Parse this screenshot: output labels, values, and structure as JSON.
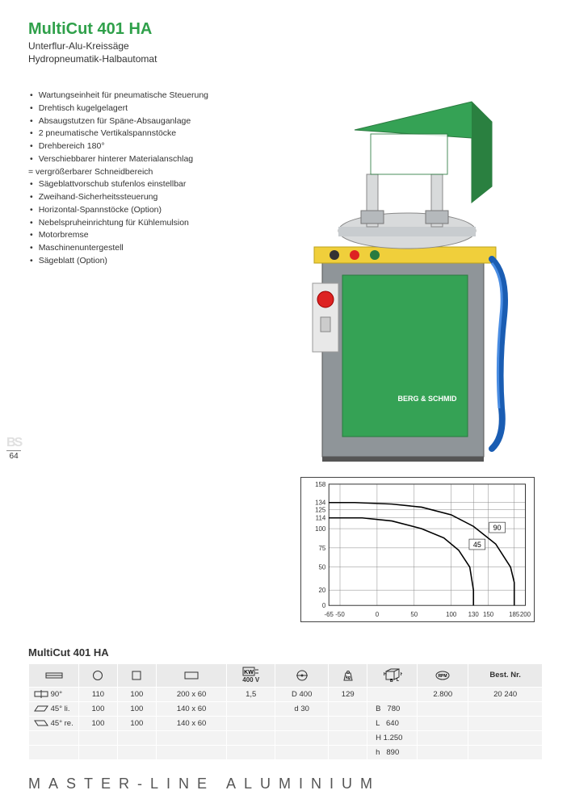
{
  "title": "MultiCut 401 HA",
  "subtitle1": "Unterflur-Alu-Kreissäge",
  "subtitle2": "Hydropneumatik-Halbautomat",
  "features": [
    "Wartungseinheit für pneumatische Steuerung",
    "Drehtisch kugelgelagert",
    "Absaugstutzen für Späne-Absauganlage",
    "2 pneumatische Vertikalspannstöcke",
    "Drehbereich 180°",
    "Verschiebbarer hinterer Materialanschlag",
    "= vergrößerbarer Schneidbereich",
    "Sägeblattvorschub stufenlos einstellbar",
    "Zweihand-Sicherheitssteuerung",
    "Horizontal-Spannstöcke (Option)",
    "Nebelspruheinrichtung für Kühlemulsion",
    "Motorbremse",
    "Maschinenuntergestell",
    "Sägeblatt (Option)"
  ],
  "feature_indent_indices": [
    6
  ],
  "page_number": "64",
  "machine_colors": {
    "body_green": "#35a255",
    "body_grey": "#8f9599",
    "panel_yellow": "#f0cf3b",
    "button_red": "#d22",
    "hose_blue": "#1a5db3",
    "steel": "#d8dadb",
    "dark": "#3a3f42"
  },
  "chart": {
    "xlim": [
      -65,
      200
    ],
    "ylim": [
      0,
      158
    ],
    "xticks": [
      -65,
      -50,
      0,
      50,
      100,
      130,
      150,
      185,
      200
    ],
    "yticks": [
      0,
      20,
      50,
      75,
      100,
      114,
      125,
      134,
      158
    ],
    "xlabels": [
      "-65",
      "-50",
      "0",
      "50",
      "100",
      "130",
      "150",
      "185",
      "200"
    ],
    "ylabels": [
      "0",
      "20",
      "50",
      "75",
      "100",
      "114",
      "125",
      "134",
      "158"
    ],
    "grid_color": "#888888",
    "line_color": "#000000",
    "curves": {
      "c90": {
        "label": "90",
        "label_x": 162,
        "label_y": 100,
        "points": [
          [
            -65,
            134
          ],
          [
            -30,
            134
          ],
          [
            20,
            132
          ],
          [
            60,
            128
          ],
          [
            100,
            118
          ],
          [
            130,
            103
          ],
          [
            160,
            80
          ],
          [
            180,
            50
          ],
          [
            185,
            30
          ],
          [
            185,
            0
          ]
        ]
      },
      "c45": {
        "label": "45",
        "label_x": 135,
        "label_y": 78,
        "points": [
          [
            -65,
            114
          ],
          [
            -20,
            114
          ],
          [
            20,
            110
          ],
          [
            60,
            100
          ],
          [
            90,
            88
          ],
          [
            110,
            72
          ],
          [
            125,
            50
          ],
          [
            130,
            20
          ],
          [
            130,
            0
          ]
        ]
      }
    }
  },
  "spec_title": "MultiCut 401 HA",
  "spec_headers": {
    "kw_sub": "400 V",
    "best": "Best. Nr."
  },
  "spec_rows": [
    {
      "angle": "90°",
      "c1": "110",
      "c2": "100",
      "c3": "200 x 60",
      "kw": "1,5",
      "d": "D 400",
      "kg": "129",
      "dim": "",
      "rpm": "2.800",
      "best": "20 240"
    },
    {
      "angle": "45° li.",
      "c1": "100",
      "c2": "100",
      "c3": "140 x 60",
      "kw": "",
      "d": "d 30",
      "kg": "",
      "dim": "B   780",
      "rpm": "",
      "best": ""
    },
    {
      "angle": "45° re.",
      "c1": "100",
      "c2": "100",
      "c3": "140 x 60",
      "kw": "",
      "d": "",
      "kg": "",
      "dim": "L   640",
      "rpm": "",
      "best": ""
    }
  ],
  "spec_dims_extra": [
    "H 1.250",
    "h   890"
  ],
  "footer": "MASTER-LINE  ALUMINIUM"
}
